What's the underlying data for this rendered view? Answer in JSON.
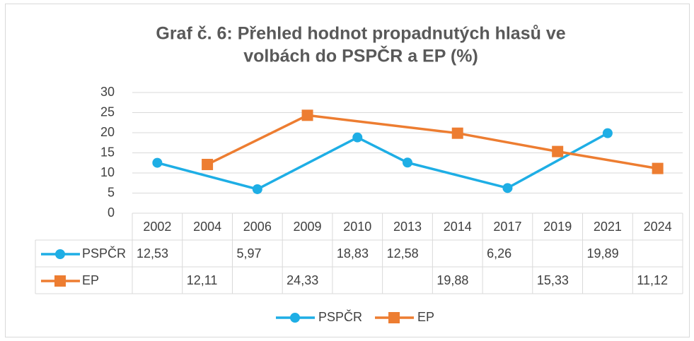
{
  "chart_data": {
    "type": "line",
    "title": [
      "Graf č. 6: Přehled hodnot propadnutých hlasů ve",
      "volbách do PSPČR a EP (%)"
    ],
    "categories": [
      "2002",
      "2004",
      "2006",
      "2009",
      "2010",
      "2013",
      "2014",
      "2017",
      "2019",
      "2021",
      "2024"
    ],
    "series": [
      {
        "name": "PSPČR",
        "color": "#1eaee5",
        "marker": "circle",
        "values": [
          12.53,
          null,
          5.97,
          null,
          18.83,
          12.58,
          null,
          6.26,
          null,
          19.89,
          null
        ],
        "value_labels": [
          "12,53",
          null,
          "5,97",
          null,
          "18,83",
          "12,58",
          null,
          "6,26",
          null,
          "19,89",
          null
        ]
      },
      {
        "name": "EP",
        "color": "#ed7d31",
        "marker": "square",
        "values": [
          null,
          12.11,
          null,
          24.33,
          null,
          null,
          19.88,
          null,
          15.33,
          null,
          11.12
        ],
        "value_labels": [
          null,
          "12,11",
          null,
          "24,33",
          null,
          null,
          "19,88",
          null,
          "15,33",
          null,
          "11,12"
        ]
      }
    ],
    "ylim": [
      0,
      30
    ],
    "yticks": [
      0,
      5,
      10,
      15,
      20,
      25,
      30
    ],
    "grid": true,
    "connect_gaps": true,
    "data_table": true,
    "legend": "bottom"
  }
}
